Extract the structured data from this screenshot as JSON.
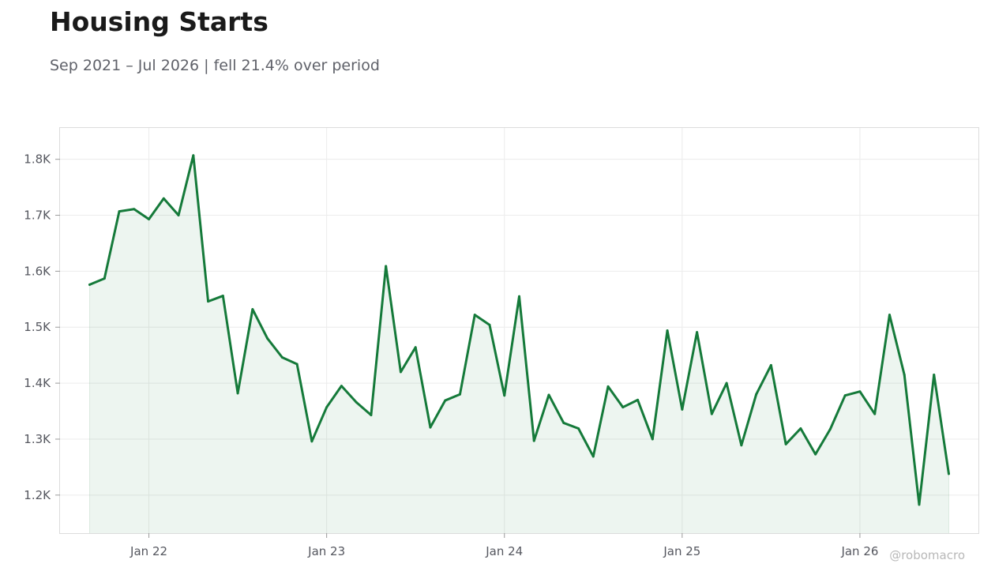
{
  "chart_data": {
    "type": "area",
    "title": "Housing Starts",
    "subtitle": "Sep 2021 – Jul 2026 | fell 21.4% over period",
    "xlabel": "",
    "ylabel": "",
    "x_start": "2021-09",
    "x_end": "2026-07",
    "x_ticks": [
      {
        "date": "2022-01",
        "label": "Jan 22"
      },
      {
        "date": "2023-01",
        "label": "Jan 23"
      },
      {
        "date": "2024-01",
        "label": "Jan 24"
      },
      {
        "date": "2025-01",
        "label": "Jan 25"
      },
      {
        "date": "2026-01",
        "label": "Jan 26"
      }
    ],
    "y_ticks": [
      {
        "value": 1200,
        "label": "1.2K"
      },
      {
        "value": 1300,
        "label": "1.3K"
      },
      {
        "value": 1400,
        "label": "1.4K"
      },
      {
        "value": 1500,
        "label": "1.5K"
      },
      {
        "value": 1600,
        "label": "1.6K"
      },
      {
        "value": 1700,
        "label": "1.7K"
      },
      {
        "value": 1800,
        "label": "1.8K"
      }
    ],
    "ylim": [
      1132,
      1856
    ],
    "xlim": [
      "2021-07",
      "2026-09"
    ],
    "grid": true,
    "legend": "none",
    "series": [
      {
        "color": "#157a3a",
        "fill_color": "#157a3a",
        "x": [
          "2021-09",
          "2021-10",
          "2021-11",
          "2021-12",
          "2022-01",
          "2022-02",
          "2022-03",
          "2022-04",
          "2022-05",
          "2022-06",
          "2022-07",
          "2022-08",
          "2022-09",
          "2022-10",
          "2022-11",
          "2022-12",
          "2023-01",
          "2023-02",
          "2023-03",
          "2023-04",
          "2023-05",
          "2023-06",
          "2023-07",
          "2023-08",
          "2023-09",
          "2023-10",
          "2023-11",
          "2023-12",
          "2024-01",
          "2024-02",
          "2024-03",
          "2024-04",
          "2024-05",
          "2024-06",
          "2024-07",
          "2024-08",
          "2024-09",
          "2024-10",
          "2024-11",
          "2024-12",
          "2025-01",
          "2025-02",
          "2025-03",
          "2025-04",
          "2025-05",
          "2025-06",
          "2025-07",
          "2025-08",
          "2025-09",
          "2025-10",
          "2025-11",
          "2025-12",
          "2026-01",
          "2026-02",
          "2026-03",
          "2026-04",
          "2026-05",
          "2026-06",
          "2026-07"
        ],
        "values": [
          1576,
          1587,
          1707,
          1711,
          1693,
          1730,
          1700,
          1807,
          1546,
          1556,
          1382,
          1532,
          1480,
          1446,
          1434,
          1296,
          1357,
          1395,
          1366,
          1343,
          1609,
          1420,
          1464,
          1321,
          1369,
          1380,
          1522,
          1504,
          1378,
          1555,
          1297,
          1379,
          1329,
          1319,
          1269,
          1394,
          1357,
          1370,
          1300,
          1494,
          1353,
          1491,
          1345,
          1400,
          1289,
          1380,
          1432,
          1291,
          1319,
          1273,
          1318,
          1378,
          1385,
          1345,
          1522,
          1415,
          1183,
          1415,
          1238
        ]
      }
    ]
  },
  "watermark": "@robomacro"
}
